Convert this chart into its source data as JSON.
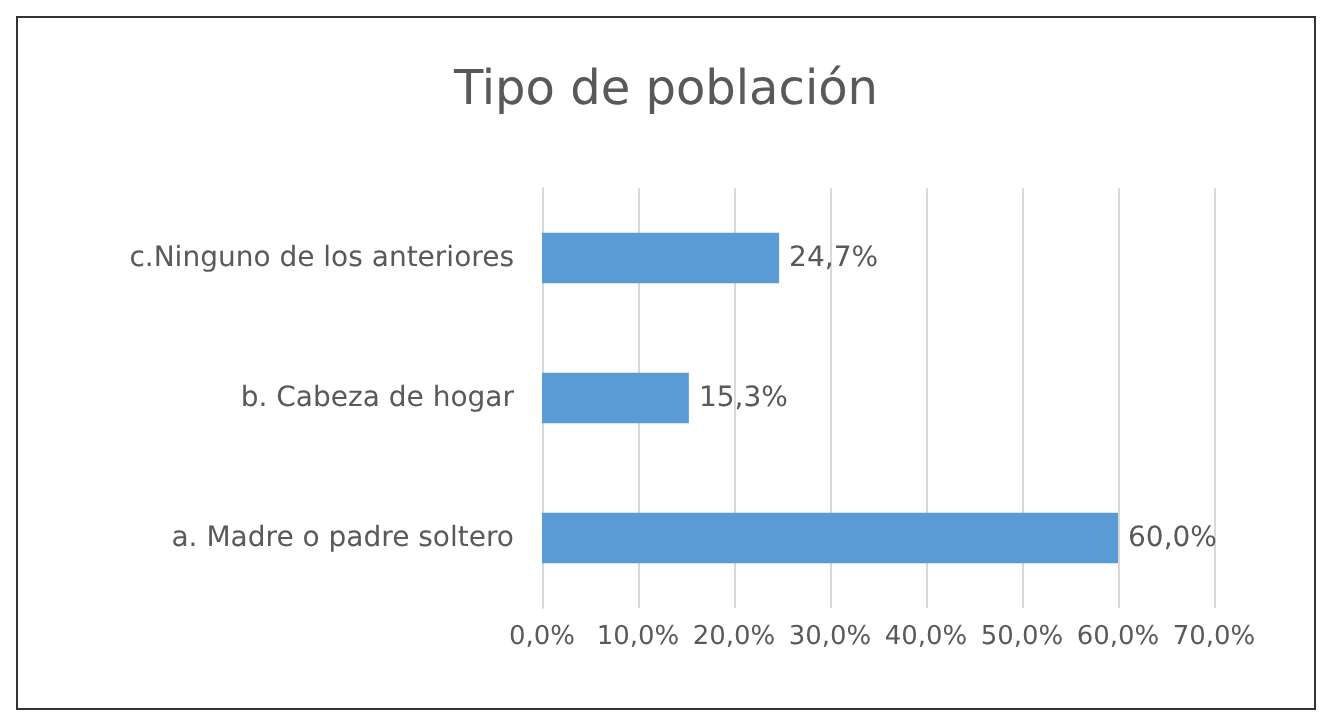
{
  "chart_data": {
    "type": "bar",
    "orientation": "horizontal",
    "title": "Tipo de población",
    "categories": [
      "c.Ninguno de los anteriores",
      "b. Cabeza de hogar",
      "a. Madre o padre soltero"
    ],
    "values": [
      24.7,
      15.3,
      60.0
    ],
    "color": "#5b9bd5",
    "value_labels": [
      "24,7%",
      "15,3%",
      "60,0%"
    ],
    "xlim": [
      0,
      70
    ],
    "xticks": [
      {
        "value": 0,
        "label": "0,0%"
      },
      {
        "value": 10,
        "label": "10,0%"
      },
      {
        "value": 20,
        "label": "20,0%"
      },
      {
        "value": 30,
        "label": "30,0%"
      },
      {
        "value": 40,
        "label": "40,0%"
      },
      {
        "value": 50,
        "label": "50,0%"
      },
      {
        "value": 60,
        "label": "60,0%"
      },
      {
        "value": 70,
        "label": "70,0%"
      }
    ],
    "grid": "x"
  }
}
